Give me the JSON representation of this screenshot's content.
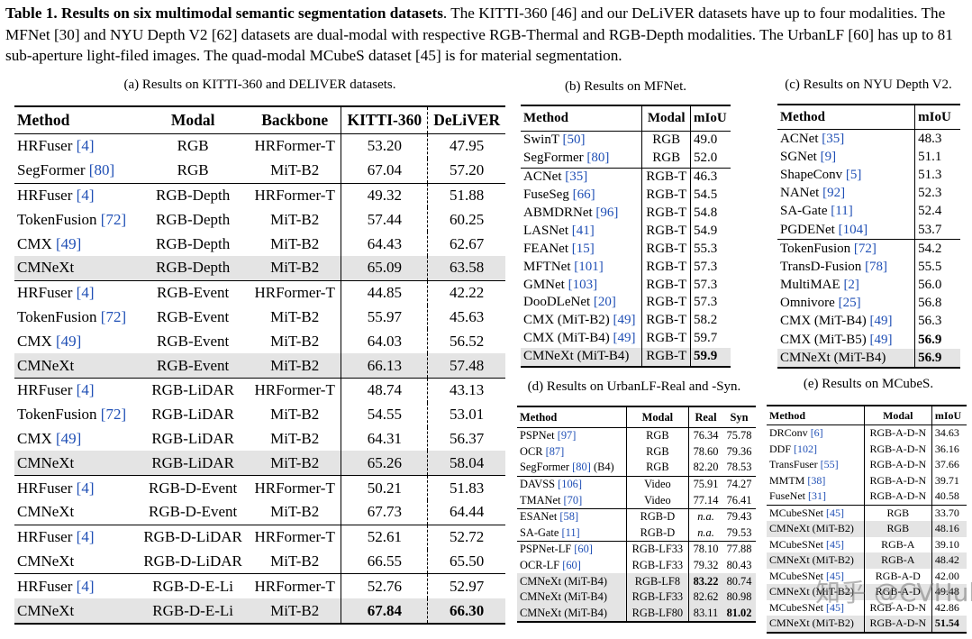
{
  "caption": {
    "label": "Table 1.",
    "bold": "Results on six multimodal semantic segmentation datasets",
    "rest": ". The KITTI-360 [46] and our DeLiVER datasets have up to four modalities. The MFNet [30] and NYU Depth V2 [62] datasets are dual-modal with respective RGB-Thermal and RGB-Depth modalities. The UrbanLF [60] has up to 81 sub-aperture light-filed images. The quad-modal MCubeS dataset [45] is for material segmentation."
  },
  "table_a": {
    "title": "(a) Results on KITTI-360 and DELIVER datasets.",
    "headers": [
      "Method",
      "Modal",
      "Backbone",
      "KITTI-360",
      "DeLiVER"
    ],
    "rows": [
      {
        "name": "HRFuser",
        "ref": "[4]",
        "modal": "RGB",
        "backbone": "HRFormer-T",
        "k": "53.20",
        "d": "47.95",
        "hl": false,
        "sep": false,
        "bk": false,
        "bd": false
      },
      {
        "name": "SegFormer",
        "ref": "[80]",
        "modal": "RGB",
        "backbone": "MiT-B2",
        "k": "67.04",
        "d": "57.20",
        "hl": false,
        "sep": false,
        "bk": false,
        "bd": false
      },
      {
        "name": "HRFuser",
        "ref": "[4]",
        "modal": "RGB-Depth",
        "backbone": "HRFormer-T",
        "k": "49.32",
        "d": "51.88",
        "hl": false,
        "sep": true,
        "bk": false,
        "bd": false
      },
      {
        "name": "TokenFusion",
        "ref": "[72]",
        "modal": "RGB-Depth",
        "backbone": "MiT-B2",
        "k": "57.44",
        "d": "60.25",
        "hl": false,
        "sep": false,
        "bk": false,
        "bd": false
      },
      {
        "name": "CMX",
        "ref": "[49]",
        "modal": "RGB-Depth",
        "backbone": "MiT-B2",
        "k": "64.43",
        "d": "62.67",
        "hl": false,
        "sep": false,
        "bk": false,
        "bd": false
      },
      {
        "name": "CMNeXt",
        "ref": "",
        "modal": "RGB-Depth",
        "backbone": "MiT-B2",
        "k": "65.09",
        "d": "63.58",
        "hl": true,
        "sep": false,
        "bk": false,
        "bd": false
      },
      {
        "name": "HRFuser",
        "ref": "[4]",
        "modal": "RGB-Event",
        "backbone": "HRFormer-T",
        "k": "44.85",
        "d": "42.22",
        "hl": false,
        "sep": true,
        "bk": false,
        "bd": false
      },
      {
        "name": "TokenFusion",
        "ref": "[72]",
        "modal": "RGB-Event",
        "backbone": "MiT-B2",
        "k": "55.97",
        "d": "45.63",
        "hl": false,
        "sep": false,
        "bk": false,
        "bd": false
      },
      {
        "name": "CMX",
        "ref": "[49]",
        "modal": "RGB-Event",
        "backbone": "MiT-B2",
        "k": "64.03",
        "d": "56.52",
        "hl": false,
        "sep": false,
        "bk": false,
        "bd": false
      },
      {
        "name": "CMNeXt",
        "ref": "",
        "modal": "RGB-Event",
        "backbone": "MiT-B2",
        "k": "66.13",
        "d": "57.48",
        "hl": true,
        "sep": false,
        "bk": false,
        "bd": false
      },
      {
        "name": "HRFuser",
        "ref": "[4]",
        "modal": "RGB-LiDAR",
        "backbone": "HRFormer-T",
        "k": "48.74",
        "d": "43.13",
        "hl": false,
        "sep": true,
        "bk": false,
        "bd": false
      },
      {
        "name": "TokenFusion",
        "ref": "[72]",
        "modal": "RGB-LiDAR",
        "backbone": "MiT-B2",
        "k": "54.55",
        "d": "53.01",
        "hl": false,
        "sep": false,
        "bk": false,
        "bd": false
      },
      {
        "name": "CMX",
        "ref": "[49]",
        "modal": "RGB-LiDAR",
        "backbone": "MiT-B2",
        "k": "64.31",
        "d": "56.37",
        "hl": false,
        "sep": false,
        "bk": false,
        "bd": false
      },
      {
        "name": "CMNeXt",
        "ref": "",
        "modal": "RGB-LiDAR",
        "backbone": "MiT-B2",
        "k": "65.26",
        "d": "58.04",
        "hl": true,
        "sep": false,
        "bk": false,
        "bd": false
      },
      {
        "name": "HRFuser",
        "ref": "[4]",
        "modal": "RGB-D-Event",
        "backbone": "HRFormer-T",
        "k": "50.21",
        "d": "51.83",
        "hl": false,
        "sep": true,
        "bk": false,
        "bd": false
      },
      {
        "name": "CMNeXt",
        "ref": "",
        "modal": "RGB-D-Event",
        "backbone": "MiT-B2",
        "k": "67.73",
        "d": "64.44",
        "hl": false,
        "sep": false,
        "bk": false,
        "bd": false
      },
      {
        "name": "HRFuser",
        "ref": "[4]",
        "modal": "RGB-D-LiDAR",
        "backbone": "HRFormer-T",
        "k": "52.61",
        "d": "52.72",
        "hl": false,
        "sep": true,
        "bk": false,
        "bd": false
      },
      {
        "name": "CMNeXt",
        "ref": "",
        "modal": "RGB-D-LiDAR",
        "backbone": "MiT-B2",
        "k": "66.55",
        "d": "65.50",
        "hl": false,
        "sep": false,
        "bk": false,
        "bd": false
      },
      {
        "name": "HRFuser",
        "ref": "[4]",
        "modal": "RGB-D-E-Li",
        "backbone": "HRFormer-T",
        "k": "52.76",
        "d": "52.97",
        "hl": false,
        "sep": true,
        "bk": false,
        "bd": false
      },
      {
        "name": "CMNeXt",
        "ref": "",
        "modal": "RGB-D-E-Li",
        "backbone": "MiT-B2",
        "k": "67.84",
        "d": "66.30",
        "hl": true,
        "sep": false,
        "bk": true,
        "bd": true
      }
    ]
  },
  "table_b": {
    "title": "(b) Results on MFNet.",
    "headers": [
      "Method",
      "Modal",
      "mIoU"
    ],
    "rows": [
      {
        "name": "SwinT",
        "ref": "[50]",
        "modal": "RGB",
        "v": "49.0",
        "hl": false,
        "sep": false,
        "bv": false
      },
      {
        "name": "SegFormer",
        "ref": "[80]",
        "modal": "RGB",
        "v": "52.0",
        "hl": false,
        "sep": false,
        "bv": false
      },
      {
        "name": "ACNet",
        "ref": "[35]",
        "modal": "RGB-T",
        "v": "46.3",
        "hl": false,
        "sep": true,
        "bv": false
      },
      {
        "name": "FuseSeg",
        "ref": "[66]",
        "modal": "RGB-T",
        "v": "54.5",
        "hl": false,
        "sep": false,
        "bv": false
      },
      {
        "name": "ABMDRNet",
        "ref": "[96]",
        "modal": "RGB-T",
        "v": "54.8",
        "hl": false,
        "sep": false,
        "bv": false
      },
      {
        "name": "LASNet",
        "ref": "[41]",
        "modal": "RGB-T",
        "v": "54.9",
        "hl": false,
        "sep": false,
        "bv": false
      },
      {
        "name": "FEANet",
        "ref": "[15]",
        "modal": "RGB-T",
        "v": "55.3",
        "hl": false,
        "sep": false,
        "bv": false
      },
      {
        "name": "MFTNet",
        "ref": "[101]",
        "modal": "RGB-T",
        "v": "57.3",
        "hl": false,
        "sep": false,
        "bv": false
      },
      {
        "name": "GMNet",
        "ref": "[103]",
        "modal": "RGB-T",
        "v": "57.3",
        "hl": false,
        "sep": false,
        "bv": false
      },
      {
        "name": "DooDLeNet",
        "ref": "[20]",
        "modal": "RGB-T",
        "v": "57.3",
        "hl": false,
        "sep": false,
        "bv": false
      },
      {
        "name": "CMX (MiT-B2)",
        "ref": "[49]",
        "modal": "RGB-T",
        "v": "58.2",
        "hl": false,
        "sep": false,
        "bv": false
      },
      {
        "name": "CMX (MiT-B4)",
        "ref": "[49]",
        "modal": "RGB-T",
        "v": "59.7",
        "hl": false,
        "sep": false,
        "bv": false
      },
      {
        "name": "CMNeXt (MiT-B4)",
        "ref": "",
        "modal": "RGB-T",
        "v": "59.9",
        "hl": true,
        "sep": false,
        "bv": true
      }
    ]
  },
  "table_c": {
    "title": "(c) Results on NYU Depth V2.",
    "headers": [
      "Method",
      "mIoU"
    ],
    "rows": [
      {
        "name": "ACNet",
        "ref": "[35]",
        "v": "48.3",
        "hl": false,
        "sep": false,
        "bv": false
      },
      {
        "name": "SGNet",
        "ref": "[9]",
        "v": "51.1",
        "hl": false,
        "sep": false,
        "bv": false
      },
      {
        "name": "ShapeConv",
        "ref": "[5]",
        "v": "51.3",
        "hl": false,
        "sep": false,
        "bv": false
      },
      {
        "name": "NANet",
        "ref": "[92]",
        "v": "52.3",
        "hl": false,
        "sep": false,
        "bv": false
      },
      {
        "name": "SA-Gate",
        "ref": "[11]",
        "v": "52.4",
        "hl": false,
        "sep": false,
        "bv": false
      },
      {
        "name": "PGDENet",
        "ref": "[104]",
        "v": "53.7",
        "hl": false,
        "sep": false,
        "bv": false
      },
      {
        "name": "TokenFusion",
        "ref": "[72]",
        "v": "54.2",
        "hl": false,
        "sep": true,
        "bv": false
      },
      {
        "name": "TransD-Fusion",
        "ref": "[78]",
        "v": "55.5",
        "hl": false,
        "sep": false,
        "bv": false
      },
      {
        "name": "MultiMAE",
        "ref": "[2]",
        "v": "56.0",
        "hl": false,
        "sep": false,
        "bv": false
      },
      {
        "name": "Omnivore",
        "ref": "[25]",
        "v": "56.8",
        "hl": false,
        "sep": false,
        "bv": false
      },
      {
        "name": "CMX (MiT-B4)",
        "ref": "[49]",
        "v": "56.3",
        "hl": false,
        "sep": false,
        "bv": false
      },
      {
        "name": "CMX (MiT-B5)",
        "ref": "[49]",
        "v": "56.9",
        "hl": false,
        "sep": false,
        "bv": true
      },
      {
        "name": "CMNeXt (MiT-B4)",
        "ref": "",
        "v": "56.9",
        "hl": true,
        "sep": false,
        "bv": true
      }
    ]
  },
  "table_d": {
    "title": "(d) Results on UrbanLF-Real and -Syn.",
    "headers": [
      "Method",
      "Modal",
      "Real",
      "Syn"
    ],
    "rows": [
      {
        "name": "PSPNet",
        "ref": "[97]",
        "suffix": "",
        "modal": "RGB",
        "real": "76.34",
        "syn": "75.78",
        "hl": false,
        "sep": false,
        "br": false,
        "bs": false,
        "ir": false
      },
      {
        "name": "OCR",
        "ref": "[87]",
        "suffix": "",
        "modal": "RGB",
        "real": "78.60",
        "syn": "79.36",
        "hl": false,
        "sep": false,
        "br": false,
        "bs": false,
        "ir": false
      },
      {
        "name": "SegFormer",
        "ref": "[80]",
        "suffix": "(B4)",
        "modal": "RGB",
        "real": "82.20",
        "syn": "78.53",
        "hl": false,
        "sep": false,
        "br": false,
        "bs": false,
        "ir": false
      },
      {
        "name": "DAVSS",
        "ref": "[106]",
        "suffix": "",
        "modal": "Video",
        "real": "75.91",
        "syn": "74.27",
        "hl": false,
        "sep": true,
        "br": false,
        "bs": false,
        "ir": false
      },
      {
        "name": "TMANet",
        "ref": "[70]",
        "suffix": "",
        "modal": "Video",
        "real": "77.14",
        "syn": "76.41",
        "hl": false,
        "sep": false,
        "br": false,
        "bs": false,
        "ir": false
      },
      {
        "name": "ESANet",
        "ref": "[58]",
        "suffix": "",
        "modal": "RGB-D",
        "real": "n.a.",
        "syn": "79.43",
        "hl": false,
        "sep": true,
        "br": false,
        "bs": false,
        "ir": true
      },
      {
        "name": "SA-Gate",
        "ref": "[11]",
        "suffix": "",
        "modal": "RGB-D",
        "real": "n.a.",
        "syn": "79.53",
        "hl": false,
        "sep": false,
        "br": false,
        "bs": false,
        "ir": true
      },
      {
        "name": "PSPNet-LF",
        "ref": "[60]",
        "suffix": "",
        "modal": "RGB-LF33",
        "real": "78.10",
        "syn": "77.88",
        "hl": false,
        "sep": true,
        "br": false,
        "bs": false,
        "ir": false
      },
      {
        "name": "OCR-LF",
        "ref": "[60]",
        "suffix": "",
        "modal": "RGB-LF33",
        "real": "79.32",
        "syn": "80.43",
        "hl": false,
        "sep": false,
        "br": false,
        "bs": false,
        "ir": false
      },
      {
        "name": "CMNeXt (MiT-B4)",
        "ref": "",
        "suffix": "",
        "modal": "RGB-LF8",
        "real": "83.22",
        "syn": "80.74",
        "hl": true,
        "sep": false,
        "br": true,
        "bs": false,
        "ir": false
      },
      {
        "name": "CMNeXt (MiT-B4)",
        "ref": "",
        "suffix": "",
        "modal": "RGB-LF33",
        "real": "82.62",
        "syn": "80.98",
        "hl": true,
        "sep": false,
        "br": false,
        "bs": false,
        "ir": false
      },
      {
        "name": "CMNeXt (MiT-B4)",
        "ref": "",
        "suffix": "",
        "modal": "RGB-LF80",
        "real": "83.11",
        "syn": "81.02",
        "hl": true,
        "sep": false,
        "br": false,
        "bs": true,
        "ir": false
      }
    ]
  },
  "table_e": {
    "title": "(e) Results on MCubeS.",
    "headers": [
      "Method",
      "Modal",
      "mIoU"
    ],
    "rows": [
      {
        "name": "DRConv",
        "ref": "[6]",
        "modal": "RGB-A-D-N",
        "v": "34.63",
        "hl": false,
        "sep": false,
        "bv": false
      },
      {
        "name": "DDF",
        "ref": "[102]",
        "modal": "RGB-A-D-N",
        "v": "36.16",
        "hl": false,
        "sep": false,
        "bv": false
      },
      {
        "name": "TransFuser",
        "ref": "[55]",
        "modal": "RGB-A-D-N",
        "v": "37.66",
        "hl": false,
        "sep": false,
        "bv": false
      },
      {
        "name": "MMTM",
        "ref": "[38]",
        "modal": "RGB-A-D-N",
        "v": "39.71",
        "hl": false,
        "sep": false,
        "bv": false
      },
      {
        "name": "FuseNet",
        "ref": "[31]",
        "modal": "RGB-A-D-N",
        "v": "40.58",
        "hl": false,
        "sep": false,
        "bv": false
      },
      {
        "name": "MCubeSNet",
        "ref": "[45]",
        "modal": "RGB",
        "v": "33.70",
        "hl": false,
        "sep": true,
        "bv": false
      },
      {
        "name": "CMNeXt (MiT-B2)",
        "ref": "",
        "modal": "RGB",
        "v": "48.16",
        "hl": true,
        "sep": false,
        "bv": false
      },
      {
        "name": "MCubeSNet",
        "ref": "[45]",
        "modal": "RGB-A",
        "v": "39.10",
        "hl": false,
        "sep": false,
        "bv": false
      },
      {
        "name": "CMNeXt (MiT-B2)",
        "ref": "",
        "modal": "RGB-A",
        "v": "48.42",
        "hl": true,
        "sep": false,
        "bv": false
      },
      {
        "name": "MCubeSNet",
        "ref": "[45]",
        "modal": "RGB-A-D",
        "v": "42.00",
        "hl": false,
        "sep": false,
        "bv": false
      },
      {
        "name": "CMNeXt (MiT-B2)",
        "ref": "",
        "modal": "RGB-A-D",
        "v": "49.48",
        "hl": true,
        "sep": false,
        "bv": false
      },
      {
        "name": "MCubeSNet",
        "ref": "[45]",
        "modal": "RGB-A-D-N",
        "v": "42.86",
        "hl": false,
        "sep": false,
        "bv": false
      },
      {
        "name": "CMNeXt (MiT-B2)",
        "ref": "",
        "modal": "RGB-A-D-N",
        "v": "51.54",
        "hl": true,
        "sep": false,
        "bv": true
      }
    ]
  },
  "watermark": "知乎 @CVHub"
}
